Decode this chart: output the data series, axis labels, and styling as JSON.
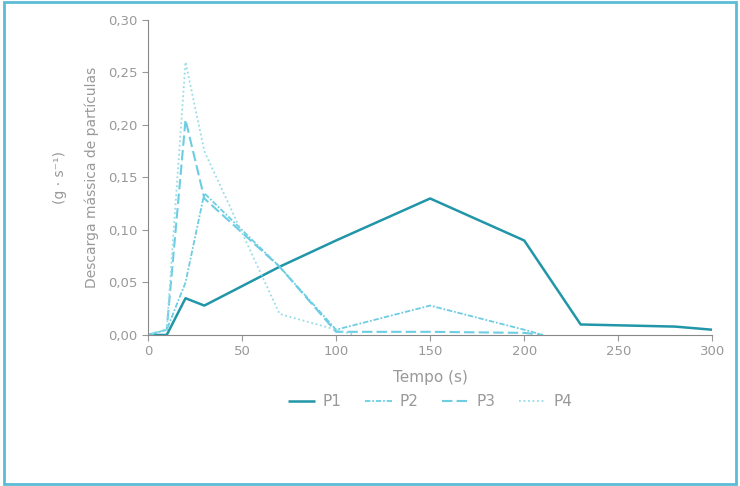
{
  "P1": {
    "x": [
      0,
      10,
      20,
      30,
      70,
      100,
      150,
      200,
      230,
      280,
      300
    ],
    "y": [
      0.0,
      0.0,
      0.035,
      0.028,
      0.065,
      0.09,
      0.13,
      0.09,
      0.01,
      0.008,
      0.005
    ],
    "color": "#2196a8",
    "linestyle": "solid",
    "linewidth": 1.8,
    "label": "P1"
  },
  "P2": {
    "x": [
      0,
      10,
      20,
      30,
      70,
      100,
      150,
      200,
      210
    ],
    "y": [
      0.0,
      0.005,
      0.05,
      0.135,
      0.065,
      0.005,
      0.028,
      0.005,
      0.0
    ],
    "color": "#6dcde3",
    "linestyle": "dashdot",
    "linewidth": 1.3,
    "label": "P2"
  },
  "P3": {
    "x": [
      0,
      10,
      20,
      30,
      70,
      100,
      150,
      200,
      210
    ],
    "y": [
      0.0,
      0.005,
      0.205,
      0.13,
      0.065,
      0.003,
      0.003,
      0.002,
      0.0
    ],
    "color": "#6dcde3",
    "linestyle": "dashed",
    "linewidth": 1.5,
    "label": "P3"
  },
  "P4": {
    "x": [
      0,
      10,
      20,
      30,
      70,
      100,
      110
    ],
    "y": [
      0.0,
      0.005,
      0.26,
      0.175,
      0.02,
      0.005,
      0.0
    ],
    "color": "#96dce8",
    "linestyle": "dotted",
    "linewidth": 1.3,
    "label": "P4"
  },
  "xlabel": "Tempo (s)",
  "ylabel_line1": "Descarga mássica de partículas",
  "ylabel_line2": "(g · s⁻¹)",
  "xlim": [
    0,
    300
  ],
  "ylim": [
    0,
    0.3
  ],
  "xticks": [
    0,
    50,
    100,
    150,
    200,
    250,
    300
  ],
  "yticks": [
    0.0,
    0.05,
    0.1,
    0.15,
    0.2,
    0.25,
    0.3
  ],
  "background_color": "#ffffff",
  "border_color": "#5bbcd6",
  "text_color": "#999999"
}
